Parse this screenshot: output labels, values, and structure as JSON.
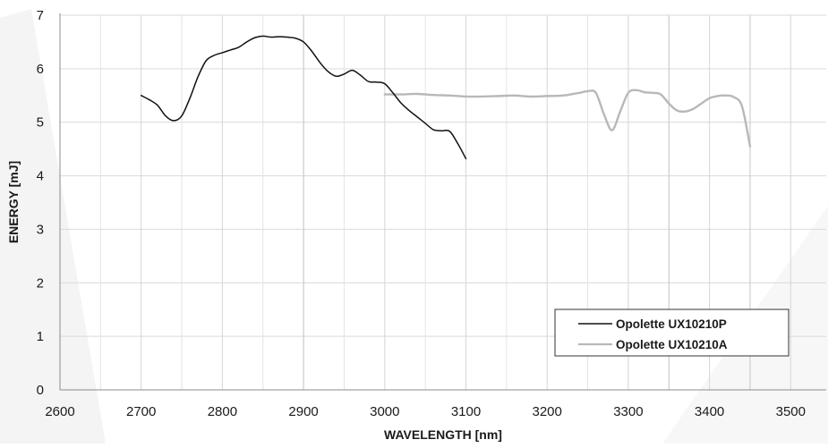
{
  "chart_data": {
    "type": "line",
    "xlabel": "WAVELENGTH [nm]",
    "ylabel": "ENERGY [mJ]",
    "xlim": [
      2600,
      3500
    ],
    "ylim": [
      0,
      7
    ],
    "x_ticks": [
      2600,
      2700,
      2800,
      2900,
      3000,
      3100,
      3200,
      3300,
      3400,
      3500
    ],
    "y_ticks": [
      0,
      1,
      2,
      3,
      4,
      5,
      6,
      7
    ],
    "grid": true,
    "minor_x_gridlines_every": 50,
    "legend_position": "bottom-right",
    "series": [
      {
        "name": "Opolette UX10210P",
        "color": "#111111",
        "points": [
          [
            2700,
            5.5
          ],
          [
            2710,
            5.42
          ],
          [
            2720,
            5.32
          ],
          [
            2730,
            5.12
          ],
          [
            2740,
            5.03
          ],
          [
            2750,
            5.12
          ],
          [
            2760,
            5.45
          ],
          [
            2770,
            5.85
          ],
          [
            2780,
            6.15
          ],
          [
            2790,
            6.25
          ],
          [
            2800,
            6.3
          ],
          [
            2810,
            6.35
          ],
          [
            2820,
            6.4
          ],
          [
            2830,
            6.5
          ],
          [
            2840,
            6.58
          ],
          [
            2850,
            6.61
          ],
          [
            2860,
            6.59
          ],
          [
            2870,
            6.6
          ],
          [
            2880,
            6.59
          ],
          [
            2890,
            6.57
          ],
          [
            2900,
            6.5
          ],
          [
            2910,
            6.33
          ],
          [
            2920,
            6.12
          ],
          [
            2930,
            5.95
          ],
          [
            2940,
            5.86
          ],
          [
            2950,
            5.9
          ],
          [
            2960,
            5.97
          ],
          [
            2970,
            5.88
          ],
          [
            2980,
            5.76
          ],
          [
            2990,
            5.75
          ],
          [
            3000,
            5.72
          ],
          [
            3010,
            5.55
          ],
          [
            3020,
            5.36
          ],
          [
            3030,
            5.22
          ],
          [
            3040,
            5.1
          ],
          [
            3050,
            4.98
          ],
          [
            3060,
            4.86
          ],
          [
            3070,
            4.84
          ],
          [
            3080,
            4.83
          ],
          [
            3090,
            4.6
          ],
          [
            3100,
            4.32
          ]
        ]
      },
      {
        "name": "Opolette UX10210A",
        "color": "#b8b8b8",
        "points": [
          [
            3000,
            5.52
          ],
          [
            3020,
            5.52
          ],
          [
            3040,
            5.53
          ],
          [
            3060,
            5.51
          ],
          [
            3080,
            5.5
          ],
          [
            3100,
            5.48
          ],
          [
            3120,
            5.48
          ],
          [
            3140,
            5.49
          ],
          [
            3160,
            5.5
          ],
          [
            3180,
            5.48
          ],
          [
            3200,
            5.49
          ],
          [
            3220,
            5.5
          ],
          [
            3240,
            5.55
          ],
          [
            3250,
            5.58
          ],
          [
            3260,
            5.55
          ],
          [
            3270,
            5.15
          ],
          [
            3280,
            4.85
          ],
          [
            3290,
            5.2
          ],
          [
            3300,
            5.55
          ],
          [
            3310,
            5.6
          ],
          [
            3320,
            5.56
          ],
          [
            3330,
            5.55
          ],
          [
            3340,
            5.52
          ],
          [
            3350,
            5.35
          ],
          [
            3360,
            5.22
          ],
          [
            3370,
            5.2
          ],
          [
            3380,
            5.25
          ],
          [
            3390,
            5.35
          ],
          [
            3400,
            5.45
          ],
          [
            3410,
            5.49
          ],
          [
            3420,
            5.5
          ],
          [
            3430,
            5.47
          ],
          [
            3440,
            5.3
          ],
          [
            3450,
            4.55
          ]
        ]
      }
    ]
  }
}
